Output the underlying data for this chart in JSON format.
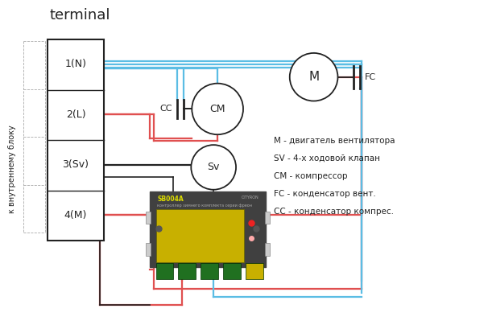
{
  "title": "terminal",
  "side_label": "к внутреннему блоку",
  "terminal_labels": [
    "1(N)",
    "2(L)",
    "3(Sv)",
    "4(M)"
  ],
  "legend_lines": [
    "М - двигатель вентилятора",
    "SV - 4-х ходовой клапан",
    "СМ - компрессор",
    "FC - конденсатор вент.",
    "СС - конденсатор компрес."
  ],
  "blue_color": "#5bbde4",
  "red_color": "#e05050",
  "black_color": "#222222",
  "gray_color": "#aaaaaa",
  "bg_color": "#ffffff"
}
